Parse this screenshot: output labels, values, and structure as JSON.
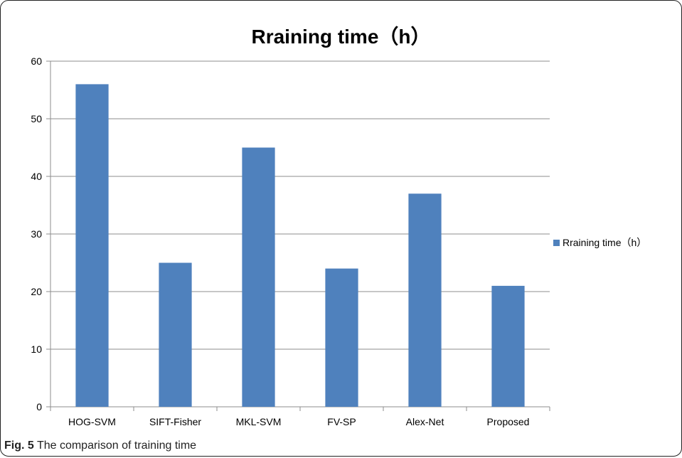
{
  "figure": {
    "caption_label": "Fig. 5",
    "caption_text": " The comparison of training time"
  },
  "chart_data": {
    "type": "bar",
    "title": "Rraining time（h）",
    "categories": [
      "HOG-SVM",
      "SIFT-Fisher",
      "MKL-SVM",
      "FV-SP",
      "Alex-Net",
      "Proposed"
    ],
    "series": [
      {
        "name": "Rraining time（h）",
        "values": [
          56,
          25,
          45,
          24,
          37,
          21
        ]
      }
    ],
    "ylim": [
      0,
      60
    ],
    "yticks": [
      0,
      10,
      20,
      30,
      40,
      50,
      60
    ],
    "grid": true,
    "legend_position": "right",
    "bar_color": "#4f81bd"
  }
}
